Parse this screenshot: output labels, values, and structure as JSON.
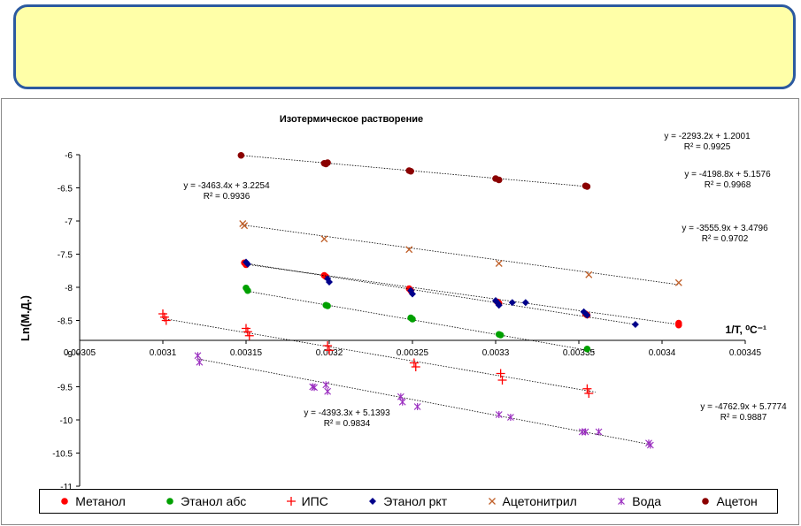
{
  "slide": {
    "title_box_text": ""
  },
  "chart_data": {
    "type": "scatter",
    "title": "Изотермическое растворение",
    "xlabel": "1/T, ⁰C⁻¹",
    "ylabel": "Ln(М.Д.)",
    "xlim": [
      0.00305,
      0.00345
    ],
    "ylim": [
      -11,
      -6
    ],
    "x_ticks": [
      "0.00305",
      "0.0031",
      "0.00315",
      "0.0032",
      "0.00325",
      "0.0033",
      "0.00335",
      "0.0034",
      "0.00345"
    ],
    "y_ticks": [
      "-6",
      "-6.5",
      "-7",
      "-7.5",
      "-8",
      "-8.5",
      "-9",
      "-9.5",
      "-10",
      "-10.5",
      "-11"
    ],
    "x_axis_crosses_y": -8.8,
    "grid": false,
    "legend_position": "bottom",
    "series": [
      {
        "name": "Метанол",
        "color": "#ff0000",
        "marker": "circle",
        "x": [
          0.003149,
          0.00315,
          0.003197,
          0.003198,
          0.003248,
          0.003249,
          0.003301,
          0.003302,
          0.003354,
          0.003355,
          0.00341,
          0.00341
        ],
        "y": [
          -7.63,
          -7.66,
          -7.82,
          -7.84,
          -8.02,
          -8.05,
          -8.22,
          -8.24,
          -8.4,
          -8.42,
          -8.54,
          -8.57
        ],
        "trend": [
          [
            0.003149,
            -7.65
          ],
          [
            0.00341,
            -8.56
          ]
        ]
      },
      {
        "name": "Этанол абс",
        "color": "#00a000",
        "marker": "circle",
        "x": [
          0.00315,
          0.003151,
          0.003198,
          0.003199,
          0.003249,
          0.00325,
          0.003302,
          0.003303,
          0.003355
        ],
        "y": [
          -8.01,
          -8.05,
          -8.27,
          -8.28,
          -8.46,
          -8.48,
          -8.71,
          -8.72,
          -8.93
        ],
        "trend": [
          [
            0.003151,
            -8.06
          ],
          [
            0.00336,
            -8.97
          ]
        ]
      },
      {
        "name": "ИПС",
        "color": "#ff0000",
        "marker": "plus",
        "x": [
          0.0031,
          0.003101,
          0.003102,
          0.00315,
          0.003151,
          0.003152,
          0.003199,
          0.0032,
          0.003251,
          0.003252,
          0.003303,
          0.003304,
          0.003355,
          0.003356
        ],
        "y": [
          -8.4,
          -8.45,
          -8.5,
          -8.62,
          -8.67,
          -8.73,
          -8.88,
          -8.95,
          -9.14,
          -9.2,
          -9.3,
          -9.4,
          -9.53,
          -9.6
        ],
        "trend": [
          [
            0.0031,
            -8.47
          ],
          [
            0.00336,
            -9.58
          ]
        ]
      },
      {
        "name": "Этанол ркт",
        "color": "#00008b",
        "marker": "diamond",
        "x": [
          0.00315,
          0.003151,
          0.003199,
          0.0032,
          0.003249,
          0.00325,
          0.0033,
          0.003301,
          0.003302,
          0.00331,
          0.003318,
          0.003353,
          0.003355,
          0.003384
        ],
        "y": [
          -7.62,
          -7.65,
          -7.87,
          -7.92,
          -8.05,
          -8.1,
          -8.2,
          -8.23,
          -8.27,
          -8.23,
          -8.23,
          -8.37,
          -8.42,
          -8.56
        ],
        "trend": [
          [
            0.00315,
            -7.64
          ],
          [
            0.003384,
            -8.56
          ]
        ]
      },
      {
        "name": "Ацетонитрил",
        "color": "#c0602a",
        "marker": "x",
        "x": [
          0.003148,
          0.003149,
          0.003197,
          0.003248,
          0.003302,
          0.003356,
          0.00341
        ],
        "y": [
          -7.04,
          -7.07,
          -7.27,
          -7.43,
          -7.64,
          -7.81,
          -7.93
        ],
        "trend": [
          [
            0.003148,
            -7.06
          ],
          [
            0.00341,
            -7.96
          ]
        ]
      },
      {
        "name": "Вода",
        "color": "#9b30c0",
        "marker": "asterisk",
        "x": [
          0.003121,
          0.003122,
          0.00319,
          0.003191,
          0.003198,
          0.003199,
          0.003243,
          0.003244,
          0.003253,
          0.003302,
          0.003309,
          0.003352,
          0.003354,
          0.003362,
          0.003392,
          0.003393
        ],
        "y": [
          -9.03,
          -9.13,
          -9.5,
          -9.51,
          -9.47,
          -9.57,
          -9.65,
          -9.73,
          -9.8,
          -9.92,
          -9.96,
          -10.18,
          -10.18,
          -10.18,
          -10.35,
          -10.38
        ],
        "trend": [
          [
            0.003121,
            -9.08
          ],
          [
            0.003393,
            -10.37
          ]
        ]
      },
      {
        "name": "Ацетон",
        "color": "#8b0000",
        "marker": "circle",
        "x": [
          0.003147,
          0.003197,
          0.003198,
          0.003199,
          0.003248,
          0.003249,
          0.0033,
          0.003302,
          0.003354,
          0.003355
        ],
        "y": [
          -6.01,
          -6.13,
          -6.14,
          -6.12,
          -6.24,
          -6.25,
          -6.36,
          -6.38,
          -6.47,
          -6.48
        ],
        "trend": [
          [
            0.003147,
            -6.01
          ],
          [
            0.003355,
            -6.48
          ]
        ]
      }
    ],
    "equations": [
      {
        "line1": "y = -2293.2x + 1.2001",
        "line2": "R² = 0.9925"
      },
      {
        "line1": "y = -4198.8x + 5.1576",
        "line2": "R² = 0.9968"
      },
      {
        "line1": "y = -3463.4x + 3.2254",
        "line2": "R² = 0.9936"
      },
      {
        "line1": "y = -3555.9x + 3.4796",
        "line2": "R² = 0.9702"
      },
      {
        "line1": "y = -4762.9x + 5.7774",
        "line2": "R² = 0.9887"
      },
      {
        "line1": "y = -4393.3x + 5.1393",
        "line2": "R² = 0.9834"
      }
    ]
  }
}
